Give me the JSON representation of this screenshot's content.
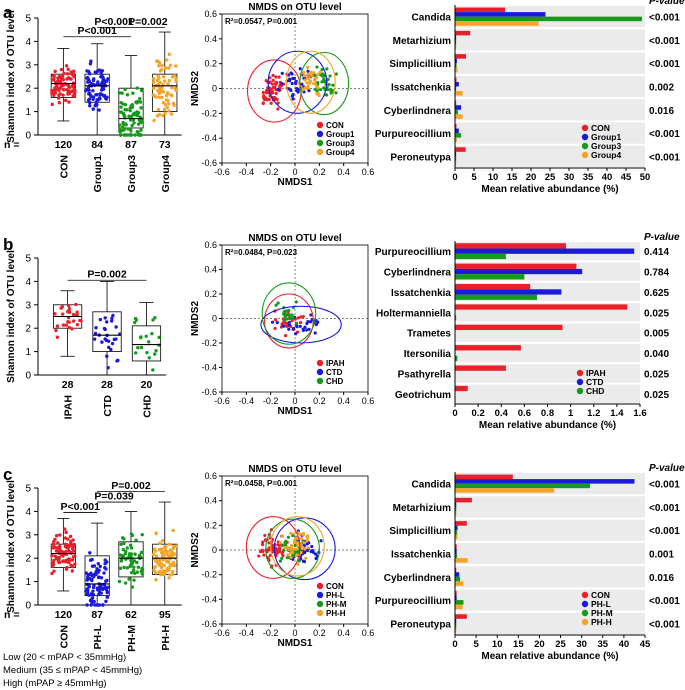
{
  "chart_data": [
    {
      "panel": "a",
      "type": "boxplot",
      "ylabel": "Shannon index of OTU level",
      "ylim": [
        0,
        5
      ],
      "yticks": [
        0,
        1,
        2,
        3,
        4,
        5
      ],
      "n_label": "n =",
      "groups": [
        {
          "name": "CON",
          "n": "120",
          "color": "#e8202a",
          "q1": 1.6,
          "median": 2.2,
          "q3": 2.6,
          "min": 0.6,
          "max": 3.7
        },
        {
          "name": "Group1",
          "n": "84",
          "color": "#1a1adb",
          "q1": 1.4,
          "median": 2.1,
          "q3": 2.6,
          "min": 0.0,
          "max": 3.9
        },
        {
          "name": "Group3",
          "n": "87",
          "color": "#159a1b",
          "q1": 0.3,
          "median": 0.7,
          "q3": 2.0,
          "min": 0.0,
          "max": 3.4
        },
        {
          "name": "Group4",
          "n": "73",
          "color": "#f5a42a",
          "q1": 1.0,
          "median": 2.1,
          "q3": 2.6,
          "min": 0.0,
          "max": 4.4
        }
      ],
      "brackets": [
        {
          "from": 0,
          "to": 2,
          "label": "P<0.001",
          "y": 4.2
        },
        {
          "from": 1,
          "to": 2,
          "label": "P<0.001",
          "y": 4.6
        },
        {
          "from": 2,
          "to": 3,
          "label": "P=0.002",
          "y": 4.6
        }
      ]
    },
    {
      "panel": "a",
      "type": "scatter",
      "title": "NMDS on OTU level",
      "stat": "R²=0.0547, P=0.001",
      "xlabel": "NMDS1",
      "ylabel": "NMDS2",
      "xlim": [
        -0.6,
        0.6
      ],
      "ylim": [
        -0.6,
        0.6
      ],
      "xticks": [
        -0.6,
        -0.4,
        -0.2,
        0,
        0.2,
        0.4,
        0.6
      ],
      "yticks": [
        -0.6,
        -0.4,
        -0.2,
        0,
        0.2,
        0.4,
        0.6
      ],
      "series": [
        {
          "name": "CON",
          "color": "#e8202a",
          "cx": -0.17,
          "cy": -0.02,
          "rx": 0.22,
          "ry": 0.25,
          "count": 60
        },
        {
          "name": "Group1",
          "color": "#1a1adb",
          "cx": 0.02,
          "cy": 0.05,
          "rx": 0.24,
          "ry": 0.25,
          "count": 40
        },
        {
          "name": "Group3",
          "color": "#159a1b",
          "cx": 0.24,
          "cy": 0.04,
          "rx": 0.2,
          "ry": 0.25,
          "count": 40
        },
        {
          "name": "Group4",
          "color": "#f5a42a",
          "cx": 0.13,
          "cy": 0.05,
          "rx": 0.2,
          "ry": 0.25,
          "count": 35
        }
      ]
    },
    {
      "panel": "a",
      "type": "bar",
      "orientation": "horizontal",
      "xlabel": "Mean relative abundance (%)",
      "xlim": [
        0,
        50
      ],
      "xticks": [
        0,
        5,
        10,
        15,
        20,
        25,
        30,
        35,
        40,
        45,
        50
      ],
      "pvalue_header": "P-value",
      "categories": [
        "Candida",
        "Metarhizium",
        "Simplicillium",
        "Issatchenkia",
        "Cyberlindnera",
        "Purpureocillium",
        "Peroneutypa"
      ],
      "pvalues": [
        "<0.001",
        "<0.001",
        "<0.001",
        "0.002",
        "0.016",
        "<0.001",
        "<0.001"
      ],
      "series": [
        {
          "name": "CON",
          "color": "#e8202a",
          "values": [
            13.2,
            4.0,
            2.9,
            0.4,
            0.3,
            0.4,
            2.8
          ]
        },
        {
          "name": "Group1",
          "color": "#1a1adb",
          "values": [
            23.8,
            0.3,
            0.5,
            1.0,
            1.6,
            1.0,
            0.3
          ]
        },
        {
          "name": "Group3",
          "color": "#159a1b",
          "values": [
            49.2,
            0.3,
            0.4,
            0.3,
            0.8,
            1.6,
            0.3
          ]
        },
        {
          "name": "Group4",
          "color": "#f5a42a",
          "values": [
            22.0,
            0.3,
            0.7,
            2.0,
            2.0,
            0.5,
            0.3
          ]
        }
      ]
    },
    {
      "panel": "b",
      "type": "boxplot",
      "ylabel": "Shannon index of OTU level",
      "ylim": [
        0,
        5
      ],
      "yticks": [
        0,
        1,
        2,
        3,
        4,
        5
      ],
      "n_label": "",
      "groups": [
        {
          "name": "IPAH",
          "n": "28",
          "color": "#e8202a",
          "q1": 2.0,
          "median": 2.5,
          "q3": 3.0,
          "min": 0.8,
          "max": 3.6
        },
        {
          "name": "CTD",
          "n": "28",
          "color": "#1a1adb",
          "q1": 1.0,
          "median": 1.7,
          "q3": 2.7,
          "min": 0.0,
          "max": 4.0
        },
        {
          "name": "CHD",
          "n": "20",
          "color": "#159a1b",
          "q1": 0.6,
          "median": 1.3,
          "q3": 2.1,
          "min": 0.0,
          "max": 3.1
        }
      ],
      "brackets": [
        {
          "from": 0,
          "to": 2,
          "label": "P=0.002",
          "y": 4.05
        }
      ]
    },
    {
      "panel": "b",
      "type": "scatter",
      "title": "NMDS on OTU level",
      "stat": "R²=0.0484, P=0.023",
      "xlabel": "NMDS1",
      "ylabel": "NMDS2",
      "xlim": [
        -0.6,
        0.6
      ],
      "ylim": [
        -0.6,
        0.6
      ],
      "xticks": [
        -0.6,
        -0.4,
        -0.2,
        0,
        0.2,
        0.4,
        0.6
      ],
      "yticks": [
        -0.6,
        -0.4,
        -0.2,
        0,
        0.2,
        0.4,
        0.6
      ],
      "series": [
        {
          "name": "IPAH",
          "color": "#e8202a",
          "cx": -0.05,
          "cy": -0.02,
          "rx": 0.2,
          "ry": 0.22,
          "count": 28
        },
        {
          "name": "CTD",
          "color": "#1a1adb",
          "cx": 0.05,
          "cy": -0.05,
          "rx": 0.33,
          "ry": 0.15,
          "count": 28
        },
        {
          "name": "CHD",
          "color": "#159a1b",
          "cx": -0.05,
          "cy": 0.04,
          "rx": 0.22,
          "ry": 0.25,
          "count": 20
        }
      ]
    },
    {
      "panel": "b",
      "type": "bar",
      "orientation": "horizontal",
      "xlabel": "Mean relative abundance (%)",
      "xlim": [
        0,
        1.6
      ],
      "xticks": [
        0,
        0.2,
        0.4,
        0.6,
        0.8,
        1,
        1.2,
        1.4,
        1.6
      ],
      "pvalue_header": "P-value",
      "categories": [
        "Purpureocillium",
        "Cyberlindnera",
        "Issatchenkia",
        "Holtermanniella",
        "Trametes",
        "Itersonilia",
        "Psathyrella",
        "Geotrichum"
      ],
      "pvalues": [
        "0.414",
        "0.784",
        "0.625",
        "0.025",
        "0.005",
        "0.040",
        "0.025",
        "0.025"
      ],
      "series": [
        {
          "name": "IPAH",
          "color": "#e8202a",
          "values": [
            0.96,
            1.05,
            0.65,
            1.49,
            0.93,
            0.57,
            0.44,
            0.11
          ]
        },
        {
          "name": "CTD",
          "color": "#1a1adb",
          "values": [
            1.55,
            1.1,
            0.92,
            0.0,
            0.0,
            0.0,
            0.0,
            0.0
          ]
        },
        {
          "name": "CHD",
          "color": "#159a1b",
          "values": [
            0.44,
            0.6,
            0.71,
            0.01,
            0.0,
            0.02,
            0.0,
            0.0
          ]
        }
      ]
    },
    {
      "panel": "c",
      "type": "boxplot",
      "ylabel": "Shannon index of OTU level",
      "ylim": [
        0,
        5
      ],
      "yticks": [
        0,
        1,
        2,
        3,
        4,
        5
      ],
      "n_label": "n =",
      "groups": [
        {
          "name": "CON",
          "n": "120",
          "color": "#e8202a",
          "q1": 1.6,
          "median": 2.2,
          "q3": 2.6,
          "min": 0.6,
          "max": 3.7
        },
        {
          "name": "PH-L",
          "n": "87",
          "color": "#1a1adb",
          "q1": 0.4,
          "median": 0.9,
          "q3": 2.1,
          "min": 0.0,
          "max": 3.5
        },
        {
          "name": "PH-M",
          "n": "62",
          "color": "#159a1b",
          "q1": 1.2,
          "median": 2.0,
          "q3": 2.7,
          "min": 0.0,
          "max": 4.0
        },
        {
          "name": "PH-H",
          "n": "95",
          "color": "#f5a42a",
          "q1": 1.3,
          "median": 2.0,
          "q3": 2.6,
          "min": 0.0,
          "max": 4.4
        }
      ],
      "brackets": [
        {
          "from": 0,
          "to": 1,
          "label": "P<0.001",
          "y": 3.95
        },
        {
          "from": 1,
          "to": 2,
          "label": "P=0.039",
          "y": 4.4
        },
        {
          "from": 1,
          "to": 3,
          "label": "P=0.002",
          "y": 4.85
        }
      ]
    },
    {
      "panel": "c",
      "type": "scatter",
      "title": "NMDS on OTU level",
      "stat": "R²=0.0458, P=0.001",
      "xlabel": "NMDS1",
      "ylabel": "NMDS2",
      "xlim": [
        -0.6,
        0.6
      ],
      "ylim": [
        -0.6,
        0.6
      ],
      "xticks": [
        -0.6,
        -0.4,
        -0.2,
        0,
        0.2,
        0.4,
        0.6
      ],
      "yticks": [
        -0.6,
        -0.4,
        -0.2,
        0,
        0.2,
        0.4,
        0.6
      ],
      "series": [
        {
          "name": "CON",
          "color": "#e8202a",
          "cx": -0.18,
          "cy": 0.02,
          "rx": 0.22,
          "ry": 0.25,
          "count": 60
        },
        {
          "name": "PH-L",
          "color": "#1a1adb",
          "cx": 0.08,
          "cy": 0.01,
          "rx": 0.25,
          "ry": 0.25,
          "count": 45
        },
        {
          "name": "PH-M",
          "color": "#159a1b",
          "cx": -0.02,
          "cy": 0.01,
          "rx": 0.22,
          "ry": 0.24,
          "count": 35
        },
        {
          "name": "PH-H",
          "color": "#f5a42a",
          "cx": 0.02,
          "cy": 0.03,
          "rx": 0.22,
          "ry": 0.24,
          "count": 45
        }
      ]
    },
    {
      "panel": "c",
      "type": "bar",
      "orientation": "horizontal",
      "xlabel": "Mean relative abundance (%)",
      "xlim": [
        0,
        45
      ],
      "xticks": [
        0,
        5,
        10,
        15,
        20,
        25,
        30,
        35,
        40,
        45
      ],
      "pvalue_header": "P-value",
      "categories": [
        "Candida",
        "Metarhizium",
        "Simplicillium",
        "Issatchenkia",
        "Cyberlindnera",
        "Purpureocillium",
        "Peroneutypa"
      ],
      "pvalues": [
        "<0.001",
        "<0.001",
        "<0.001",
        "0.001",
        "0.016",
        "<0.001",
        "<0.001"
      ],
      "series": [
        {
          "name": "CON",
          "color": "#e8202a",
          "values": [
            13.7,
            4.0,
            2.8,
            0.4,
            0.3,
            0.4,
            2.8
          ]
        },
        {
          "name": "PH-L",
          "color": "#1a1adb",
          "values": [
            42.5,
            0.3,
            0.6,
            0.4,
            1.0,
            0.4,
            0.3
          ]
        },
        {
          "name": "PH-M",
          "color": "#159a1b",
          "values": [
            32.0,
            0.3,
            0.5,
            0.5,
            1.2,
            2.0,
            0.3
          ]
        },
        {
          "name": "PH-H",
          "color": "#f5a42a",
          "values": [
            23.5,
            0.3,
            0.6,
            3.0,
            2.0,
            1.8,
            0.3
          ]
        }
      ]
    }
  ],
  "panels": {
    "a": {
      "letter": "a"
    },
    "b": {
      "letter": "b"
    },
    "c": {
      "letter": "c"
    }
  },
  "footnote": {
    "low": "Low (20 < mPAP < 35mmHg)",
    "medium": "Medium (35 ≤ mPAP < 45mmHg)",
    "high": "High (mPAP ≥ 45mmHg)"
  }
}
